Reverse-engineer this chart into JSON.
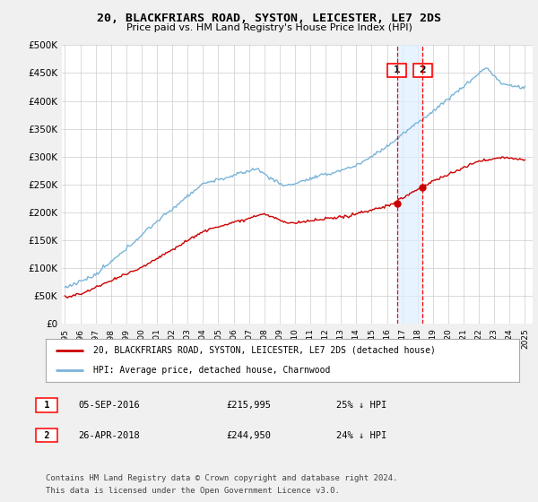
{
  "title": "20, BLACKFRIARS ROAD, SYSTON, LEICESTER, LE7 2DS",
  "subtitle": "Price paid vs. HM Land Registry's House Price Index (HPI)",
  "ylabel_ticks": [
    "£0",
    "£50K",
    "£100K",
    "£150K",
    "£200K",
    "£250K",
    "£300K",
    "£350K",
    "£400K",
    "£450K",
    "£500K"
  ],
  "ytick_values": [
    0,
    50000,
    100000,
    150000,
    200000,
    250000,
    300000,
    350000,
    400000,
    450000,
    500000
  ],
  "hpi_color": "#7ab4d8",
  "price_color": "#cc0000",
  "marker1_year": 2016.68,
  "marker1_price": 215995,
  "marker1_date": "05-SEP-2016",
  "marker1_hpi_pct": "25% ↓ HPI",
  "marker2_year": 2018.32,
  "marker2_price": 244950,
  "marker2_date": "26-APR-2018",
  "marker2_hpi_pct": "24% ↓ HPI",
  "legend_line1": "20, BLACKFRIARS ROAD, SYSTON, LEICESTER, LE7 2DS (detached house)",
  "legend_line2": "HPI: Average price, detached house, Charnwood",
  "footnote1": "Contains HM Land Registry data © Crown copyright and database right 2024.",
  "footnote2": "This data is licensed under the Open Government Licence v3.0.",
  "background_color": "#f0f0f0",
  "plot_bg_color": "#ffffff",
  "grid_color": "#cccccc",
  "span_color": "#ddeeff"
}
